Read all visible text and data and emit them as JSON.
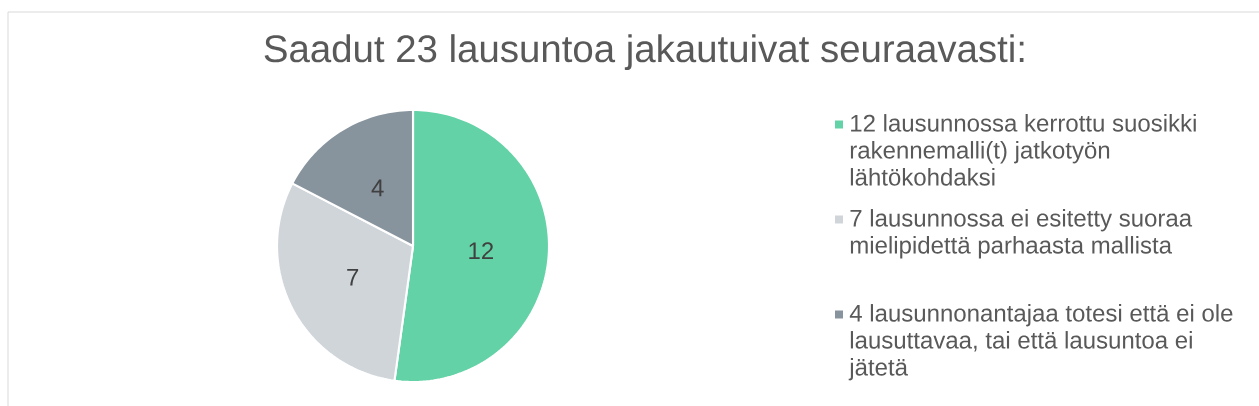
{
  "chart_data": {
    "type": "pie",
    "title": "Saadut 23 lausuntoa jakautuivat seuraavasti:",
    "categories": [
      "12 lausunnossa kerrottu suosikki rakennemalli(t) jatkotyön lähtökohdaksi",
      "7 lausunnossa ei esitetty suoraa mielipidettä parhaasta mallista",
      "4 lausunnonantajaa totesi että ei ole lausuttavaa, tai että lausuntoa ei jätetä"
    ],
    "values": [
      12,
      7,
      4
    ],
    "colors": [
      "#63d2a6",
      "#d0d5da",
      "#87939d"
    ],
    "data_labels": true,
    "legend": "right"
  }
}
